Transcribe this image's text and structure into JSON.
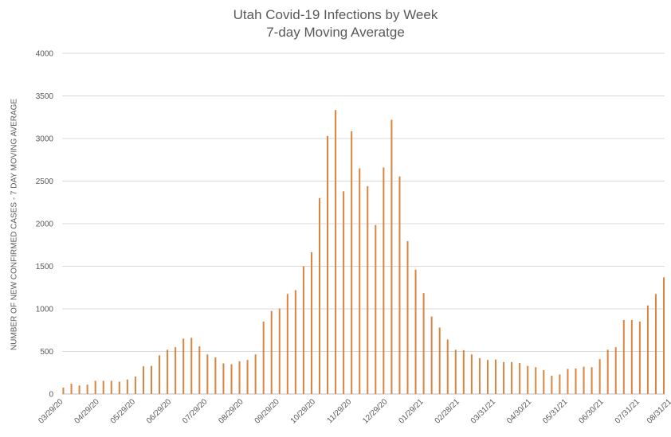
{
  "chart_data": {
    "type": "bar",
    "title": "Utah Covid-19 Infections by Week",
    "subtitle": "7-day Moving Averatge",
    "xlabel": "",
    "ylabel": "NUMBER OF NEW CONFIRMED CASES - 7 DAY MOVING AVERAGE",
    "ylim": [
      0,
      4000
    ],
    "yticks": [
      0,
      500,
      1000,
      1500,
      2000,
      2500,
      3000,
      3500,
      4000
    ],
    "grid": true,
    "legend": "none",
    "bar_color": "#d9843f",
    "x_tick_labels": [
      "03/29/20",
      "04/29/20",
      "05/29/20",
      "06/29/20",
      "07/29/20",
      "08/29/20",
      "09/29/20",
      "10/29/20",
      "11/29/20",
      "12/29/20",
      "01/29/21",
      "02/28/21",
      "03/31/21",
      "04/30/21",
      "05/31/21",
      "06/30/21",
      "07/31/21",
      "08/31/21"
    ],
    "x_tick_positions": [
      0,
      4.5,
      9,
      13.5,
      18,
      22.5,
      27,
      31.5,
      36,
      40.5,
      45,
      49.5,
      54,
      58.5,
      63,
      67.5,
      72,
      76
    ],
    "values": [
      75,
      120,
      100,
      110,
      155,
      155,
      155,
      145,
      170,
      205,
      325,
      330,
      455,
      520,
      550,
      650,
      660,
      560,
      465,
      430,
      360,
      350,
      385,
      400,
      465,
      850,
      975,
      1005,
      1175,
      1220,
      1500,
      1665,
      2300,
      3030,
      3335,
      2380,
      3085,
      2650,
      2440,
      1985,
      2660,
      3220,
      2555,
      1795,
      1460,
      1185,
      910,
      780,
      640,
      520,
      515,
      465,
      420,
      400,
      405,
      375,
      375,
      365,
      330,
      315,
      280,
      215,
      230,
      295,
      300,
      320,
      315,
      410,
      520,
      550,
      870,
      870,
      850,
      1040,
      1175,
      1370
    ]
  }
}
